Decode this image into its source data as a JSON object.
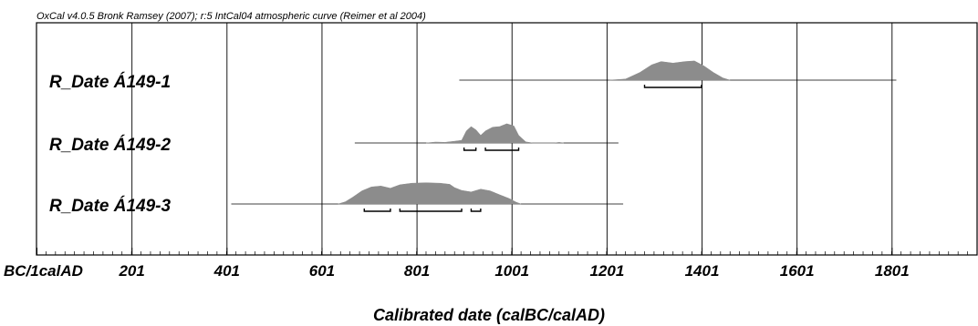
{
  "chart_data": {
    "type": "area",
    "title": "OxCal v4.0.5 Bronk Ramsey (2007); r:5 IntCal04 atmospheric curve (Reimer et al 2004)",
    "xlabel": "Calibrated date (calBC/calAD)",
    "xlim": [
      0,
      1980
    ],
    "grid": true,
    "x_ticks": [
      {
        "value": 1,
        "label": "BC/1calAD"
      },
      {
        "value": 201,
        "label": "201"
      },
      {
        "value": 401,
        "label": "401"
      },
      {
        "value": 601,
        "label": "601"
      },
      {
        "value": 801,
        "label": "801"
      },
      {
        "value": 1001,
        "label": "1001"
      },
      {
        "value": 1201,
        "label": "1201"
      },
      {
        "value": 1401,
        "label": "1401"
      },
      {
        "value": 1601,
        "label": "1601"
      },
      {
        "value": 1801,
        "label": "1801"
      }
    ],
    "series": [
      {
        "name": "R_Date Á149-1",
        "range_line": [
          890,
          1810
        ],
        "distribution": [
          [
            1205,
            0
          ],
          [
            1240,
            0.05
          ],
          [
            1270,
            0.35
          ],
          [
            1295,
            0.7
          ],
          [
            1315,
            0.85
          ],
          [
            1340,
            0.78
          ],
          [
            1365,
            0.85
          ],
          [
            1385,
            0.88
          ],
          [
            1405,
            0.65
          ],
          [
            1425,
            0.35
          ],
          [
            1445,
            0.1
          ],
          [
            1460,
            0
          ]
        ],
        "ranges": [
          [
            1280,
            1400
          ]
        ]
      },
      {
        "name": "R_Date Á149-2",
        "range_line": [
          670,
          1225
        ],
        "distribution": [
          [
            820,
            0
          ],
          [
            840,
            0.04
          ],
          [
            860,
            0.03
          ],
          [
            880,
            0.08
          ],
          [
            895,
            0.12
          ],
          [
            905,
            0.55
          ],
          [
            915,
            0.75
          ],
          [
            925,
            0.6
          ],
          [
            935,
            0.35
          ],
          [
            945,
            0.55
          ],
          [
            960,
            0.72
          ],
          [
            975,
            0.75
          ],
          [
            990,
            0.88
          ],
          [
            1005,
            0.78
          ],
          [
            1015,
            0.35
          ],
          [
            1030,
            0.05
          ],
          [
            1045,
            0
          ],
          [
            1090,
            0
          ],
          [
            1100,
            0.03
          ],
          [
            1110,
            0
          ]
        ],
        "ranges": [
          [
            900,
            925
          ],
          [
            945,
            1015
          ]
        ]
      },
      {
        "name": "R_Date Á149-3",
        "range_line": [
          410,
          1235
        ],
        "distribution": [
          [
            635,
            0
          ],
          [
            650,
            0.1
          ],
          [
            665,
            0.3
          ],
          [
            685,
            0.6
          ],
          [
            705,
            0.78
          ],
          [
            725,
            0.82
          ],
          [
            745,
            0.72
          ],
          [
            765,
            0.88
          ],
          [
            790,
            0.95
          ],
          [
            820,
            0.97
          ],
          [
            850,
            0.95
          ],
          [
            870,
            0.9
          ],
          [
            880,
            0.75
          ],
          [
            895,
            0.62
          ],
          [
            915,
            0.55
          ],
          [
            935,
            0.68
          ],
          [
            955,
            0.6
          ],
          [
            975,
            0.42
          ],
          [
            995,
            0.25
          ],
          [
            1010,
            0.08
          ],
          [
            1020,
            0
          ]
        ],
        "ranges": [
          [
            690,
            745
          ],
          [
            765,
            895
          ],
          [
            915,
            935
          ]
        ]
      }
    ]
  }
}
